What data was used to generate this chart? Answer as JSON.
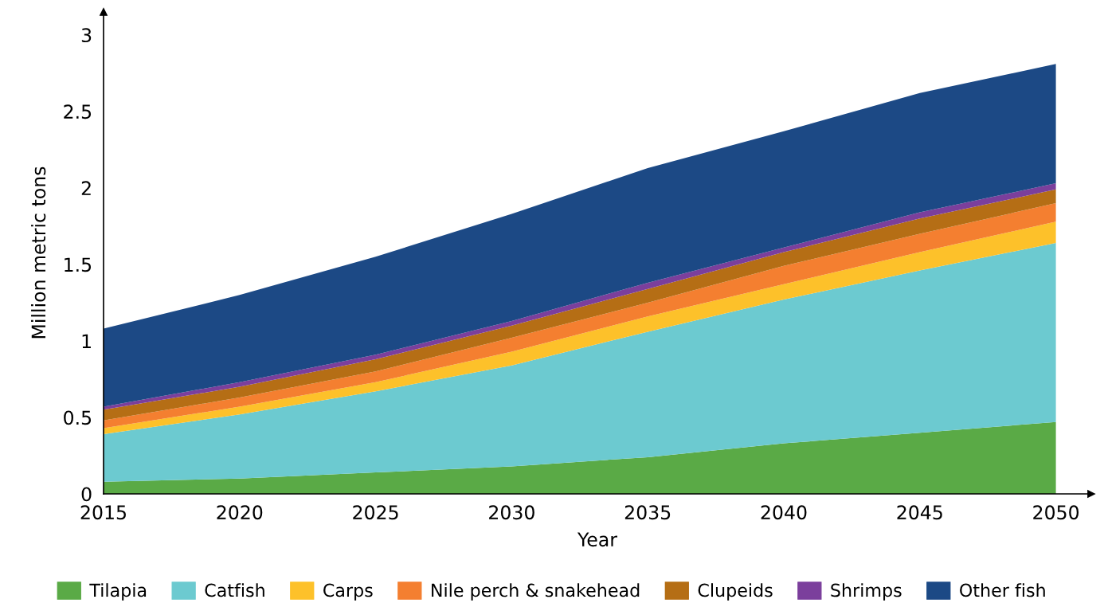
{
  "chart_data": {
    "type": "area",
    "stacked": true,
    "xlabel": "Year",
    "ylabel": "Million metric tons",
    "x": [
      2015,
      2020,
      2025,
      2030,
      2035,
      2040,
      2045,
      2050
    ],
    "series": [
      {
        "name": "Tilapia",
        "color": "#5aaa46",
        "values": [
          0.08,
          0.1,
          0.14,
          0.18,
          0.24,
          0.33,
          0.4,
          0.47
        ]
      },
      {
        "name": "Catfish",
        "color": "#6ccad0",
        "values": [
          0.31,
          0.42,
          0.53,
          0.66,
          0.82,
          0.94,
          1.06,
          1.17
        ]
      },
      {
        "name": "Carps",
        "color": "#fdc12a",
        "values": [
          0.04,
          0.05,
          0.06,
          0.09,
          0.1,
          0.1,
          0.12,
          0.14
        ]
      },
      {
        "name": "Nile perch & snakehead",
        "color": "#f47f30",
        "values": [
          0.05,
          0.06,
          0.07,
          0.09,
          0.09,
          0.12,
          0.12,
          0.12
        ]
      },
      {
        "name": "Clupeids",
        "color": "#b56e15",
        "values": [
          0.07,
          0.07,
          0.08,
          0.08,
          0.09,
          0.09,
          0.1,
          0.09
        ]
      },
      {
        "name": "Shrimps",
        "color": "#7b3f9c",
        "values": [
          0.02,
          0.03,
          0.03,
          0.03,
          0.04,
          0.03,
          0.04,
          0.04
        ]
      },
      {
        "name": "Other fish",
        "color": "#1c4985",
        "values": [
          0.51,
          0.57,
          0.64,
          0.7,
          0.75,
          0.76,
          0.78,
          0.78
        ]
      }
    ],
    "xlim": [
      2015,
      2051.3
    ],
    "ylim": [
      0,
      3.15
    ],
    "xticks": [
      2015,
      2020,
      2025,
      2030,
      2035,
      2040,
      2045,
      2050
    ],
    "yticks": [
      0,
      0.5,
      1,
      1.5,
      2,
      2.5,
      3
    ],
    "grid": false,
    "legend": "bottom"
  }
}
